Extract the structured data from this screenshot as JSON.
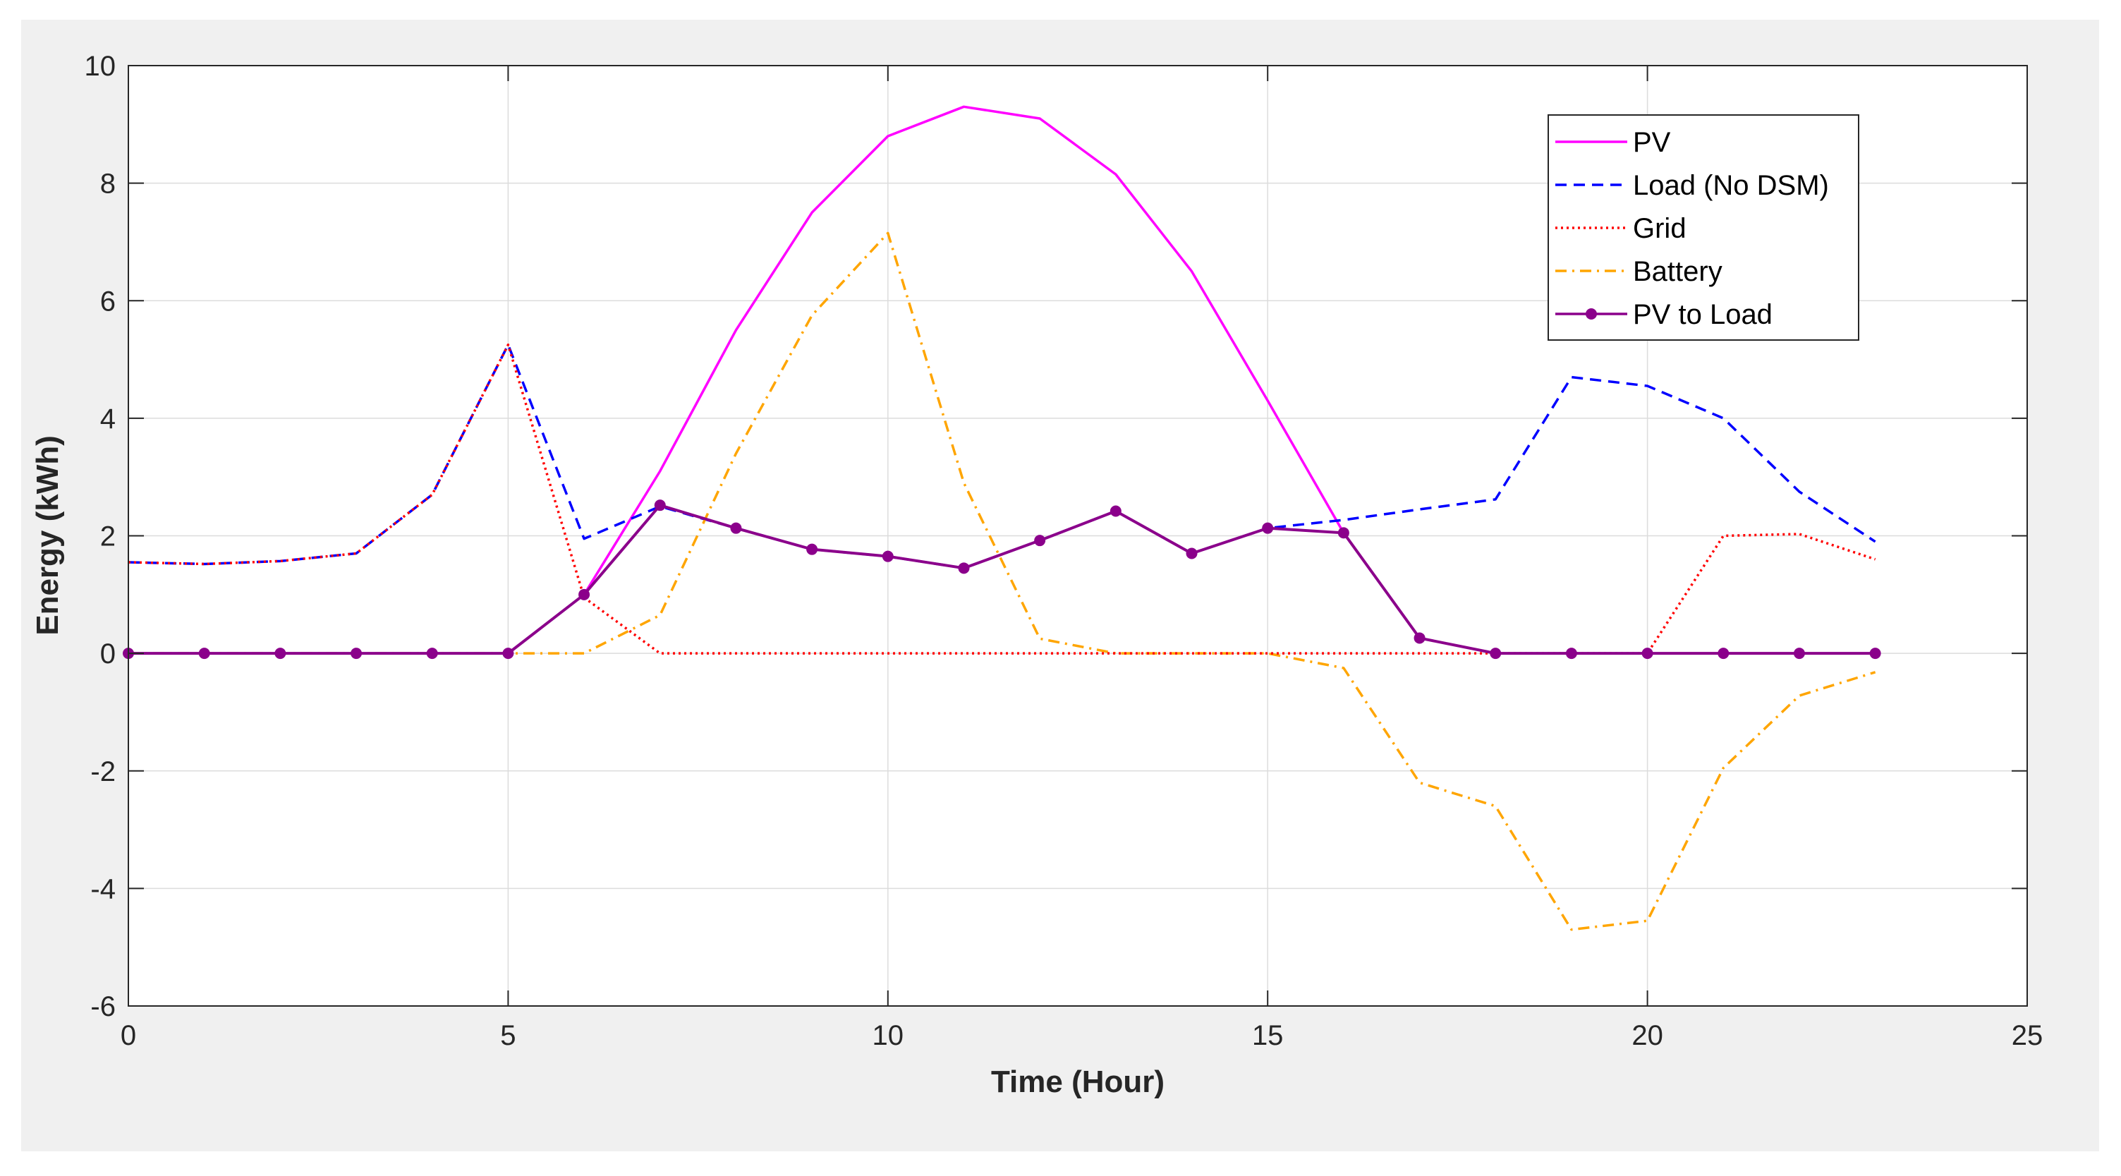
{
  "chart_data": {
    "type": "line",
    "title": "",
    "xlabel": "Time (Hour)",
    "ylabel": "Energy (kWh)",
    "xlim": [
      0,
      25
    ],
    "ylim": [
      -6,
      10
    ],
    "xticks": [
      0,
      5,
      10,
      15,
      20,
      25
    ],
    "yticks": [
      -6,
      -4,
      -2,
      0,
      2,
      4,
      6,
      8,
      10
    ],
    "grid": true,
    "legend_position": "top-right",
    "x": [
      0,
      1,
      2,
      3,
      4,
      5,
      6,
      7,
      8,
      9,
      10,
      11,
      12,
      13,
      14,
      15,
      16,
      17,
      18,
      19,
      20,
      21,
      22,
      23
    ],
    "series": [
      {
        "name": "PV",
        "color": "#ff00ff",
        "dash": "solid",
        "marker": "none",
        "values": [
          null,
          null,
          null,
          null,
          null,
          null,
          1.0,
          3.1,
          5.5,
          7.5,
          8.8,
          9.3,
          9.1,
          8.15,
          6.5,
          4.3,
          2.05,
          null,
          null,
          null,
          null,
          null,
          null,
          null
        ]
      },
      {
        "name": "Load (No DSM)",
        "color": "#0000ff",
        "dash": "dashed",
        "marker": "none",
        "values": [
          1.55,
          1.52,
          1.57,
          1.7,
          2.7,
          5.25,
          1.95,
          2.5,
          2.13,
          1.77,
          1.65,
          1.45,
          1.92,
          2.42,
          1.7,
          2.13,
          2.27,
          2.45,
          2.62,
          4.7,
          4.55,
          4.0,
          2.75,
          1.9
        ]
      },
      {
        "name": "Grid",
        "color": "#ff0000",
        "dash": "dotted",
        "marker": "none",
        "values": [
          1.55,
          1.52,
          1.57,
          1.7,
          2.7,
          5.25,
          0.95,
          0,
          0,
          0,
          0,
          0,
          0,
          0,
          0,
          0,
          0,
          0,
          0,
          0,
          0,
          2.0,
          2.03,
          1.6
        ]
      },
      {
        "name": "Battery",
        "color": "#ffa500",
        "dash": "dashdot",
        "marker": "none",
        "values": [
          0,
          0,
          0,
          0,
          0,
          0,
          0,
          0.65,
          3.4,
          5.75,
          7.15,
          2.9,
          0.25,
          0,
          0,
          0,
          -0.25,
          -2.2,
          -2.6,
          -4.7,
          -4.55,
          -1.95,
          -0.72,
          -0.32
        ]
      },
      {
        "name": "PV to Load",
        "color": "#8b008b",
        "dash": "solid",
        "marker": "circle",
        "values": [
          0,
          0,
          0,
          0,
          0,
          0,
          1.0,
          2.52,
          2.13,
          1.77,
          1.65,
          1.45,
          1.92,
          2.42,
          1.7,
          2.13,
          2.05,
          0.26,
          0,
          0,
          0,
          0,
          0,
          0
        ]
      }
    ]
  }
}
